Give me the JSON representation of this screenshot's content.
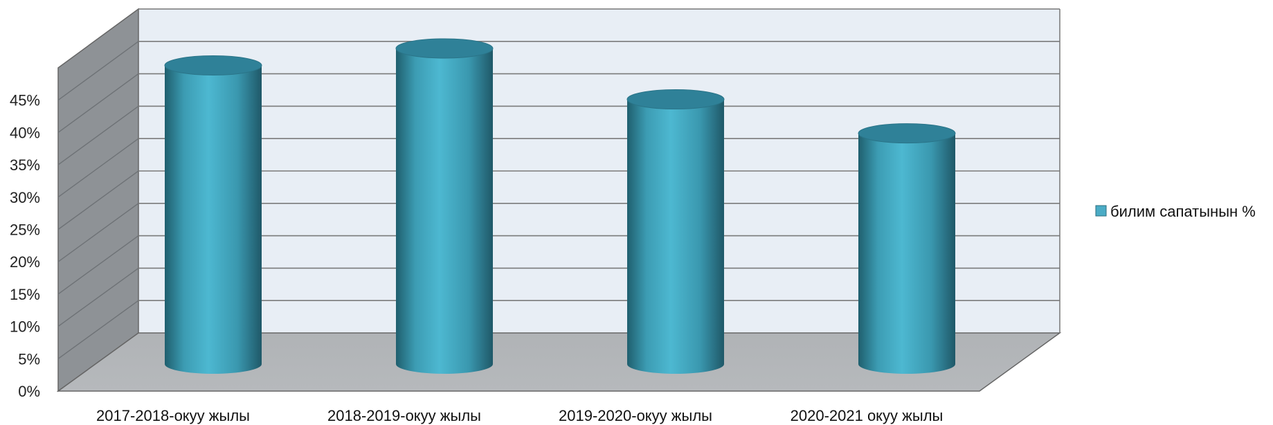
{
  "chart_data": {
    "type": "bar",
    "style": "3d-cylinder",
    "categories": [
      "2017-2018-окуу жылы",
      "2018-2019-окуу жылы",
      "2019-2020-окуу жылы",
      "2020-2021 окуу жылы"
    ],
    "series": [
      {
        "name": "билим сапатынын %",
        "values": [
          44,
          46.5,
          39,
          34
        ],
        "color": "#4BACC6"
      }
    ],
    "yticks": [
      "0%",
      "5%",
      "10%",
      "15%",
      "20%",
      "25%",
      "30%",
      "35%",
      "40%",
      "45%"
    ],
    "ylim": [
      0,
      50
    ],
    "y_unit": "%",
    "grid": true,
    "legend_position": "right",
    "colors": {
      "back_wall": "#E8EEF5",
      "side_wall": "#8E9296",
      "floor": "#B3B6B9",
      "gridline": "#7A7A7A"
    }
  }
}
